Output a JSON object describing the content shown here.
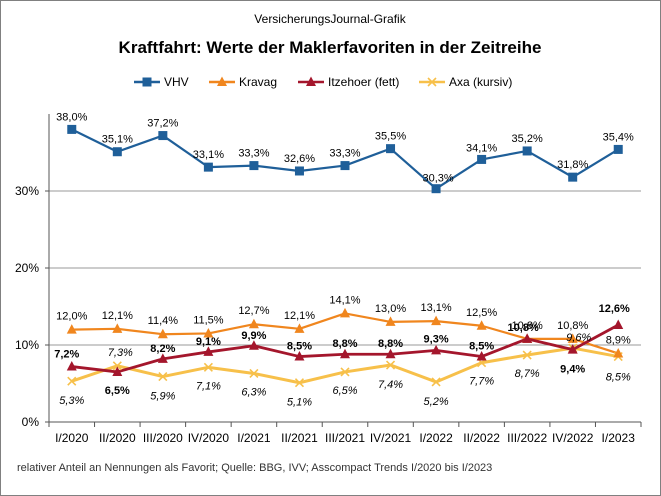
{
  "chart_data": {
    "type": "line",
    "credit": "VersicherungsJournal-Grafik",
    "title": "Kraftfahrt: Werte der Maklerfavoriten in der Zeitreihe",
    "footnote": "relativer  Anteil an Nennungen  als Favorit;  Quelle:  BBG, IVV;  Asscompact Trends  I/2020  bis I/2023",
    "categories": [
      "I/2020",
      "II/2020",
      "III/2020",
      "IV/2020",
      "I/2021",
      "II/2021",
      "III/2021",
      "IV/2021",
      "I/2022",
      "II/2022",
      "III/2022",
      "IV/2022",
      "I/2023"
    ],
    "y_ticks": [
      "0%",
      "10%",
      "20%",
      "30%"
    ],
    "ylim": [
      0,
      40
    ],
    "grid": true,
    "legend_position": "top",
    "series": [
      {
        "name": "VHV",
        "color": "#1F5F99",
        "marker": "square",
        "values": [
          38.0,
          35.1,
          37.2,
          33.1,
          33.3,
          32.6,
          33.3,
          35.5,
          30.3,
          34.1,
          35.2,
          31.8,
          35.4
        ],
        "labels": [
          "38,0%",
          "35,1%",
          "37,2%",
          "33,1%",
          "33,3%",
          "32,6%",
          "33,3%",
          "35,5%",
          "30,3%",
          "34,1%",
          "35,2%",
          "31,8%",
          "35,4%"
        ],
        "label_style": "normal"
      },
      {
        "name": "Kravag",
        "color": "#F0861E",
        "marker": "triangle",
        "values": [
          12.0,
          12.1,
          11.4,
          11.5,
          12.7,
          12.1,
          14.1,
          13.0,
          13.1,
          12.5,
          10.8,
          10.8,
          8.9
        ],
        "labels": [
          "12,0%",
          "12,1%",
          "11,4%",
          "11,5%",
          "12,7%",
          "12,1%",
          "14,1%",
          "13,0%",
          "13,1%",
          "12,5%",
          "10,8%",
          "10,8%",
          "8,9%"
        ],
        "label_style": "normal"
      },
      {
        "name": "Itzehoer (fett)",
        "color": "#A4162C",
        "marker": "triangle",
        "values": [
          7.2,
          6.5,
          8.2,
          9.1,
          9.9,
          8.5,
          8.8,
          8.8,
          9.3,
          8.5,
          10.8,
          9.4,
          12.6
        ],
        "labels": [
          "7,2%",
          "6,5%",
          "8,2%",
          "9,1%",
          "9,9%",
          "8,5%",
          "8,8%",
          "8,8%",
          "9,3%",
          "8,5%",
          "10,8%",
          "9,4%",
          "12,6%"
        ],
        "label_style": "bold"
      },
      {
        "name": "Axa  (kursiv)",
        "color": "#F7C04A",
        "marker": "x",
        "values": [
          5.3,
          7.3,
          5.9,
          7.1,
          6.3,
          5.1,
          6.5,
          7.4,
          5.2,
          7.7,
          8.7,
          9.6,
          8.5
        ],
        "labels": [
          "5,3%",
          "7,3%",
          "5,9%",
          "7,1%",
          "6,3%",
          "5,1%",
          "6,5%",
          "7,4%",
          "5,2%",
          "7,7%",
          "8,7%",
          "9,6%",
          "8,5%"
        ],
        "label_style": "italic"
      }
    ]
  }
}
